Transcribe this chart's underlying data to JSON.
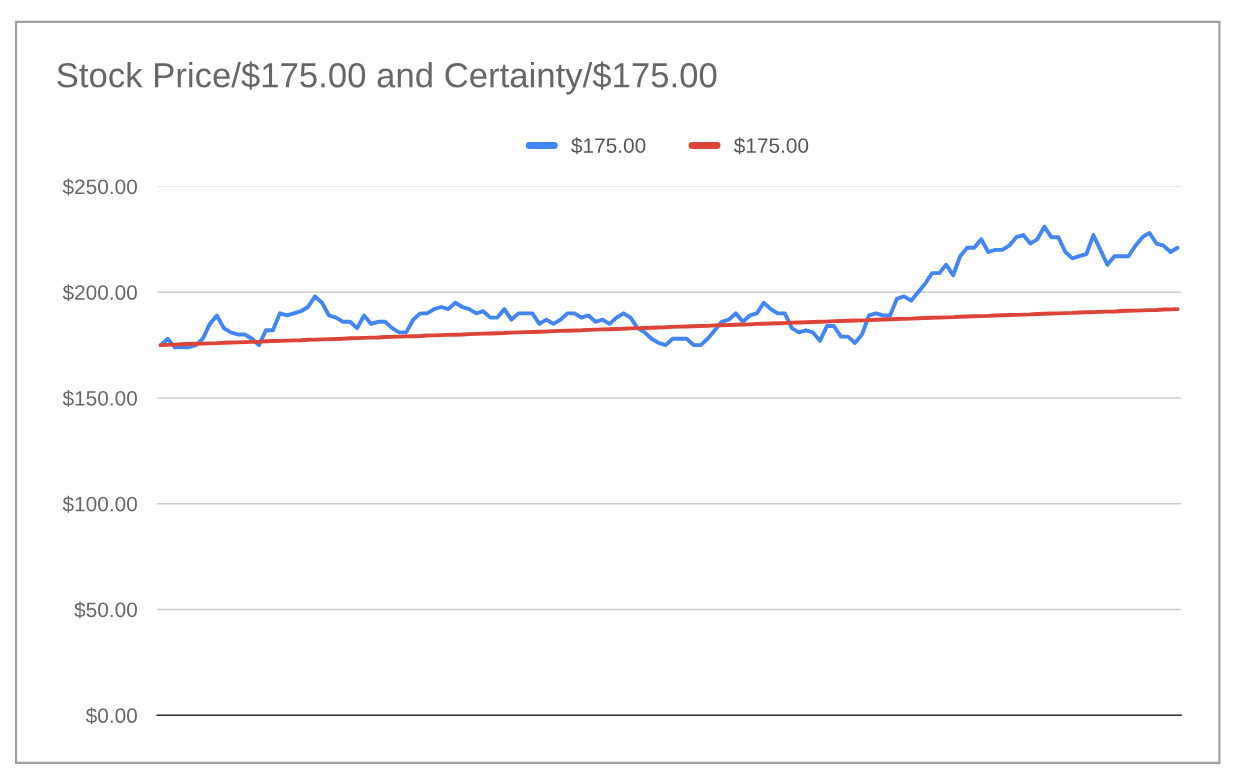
{
  "chart_data": {
    "type": "line",
    "title": "Stock Price/$175.00 and Certainty/$175.00",
    "categories": [
      null,
      null,
      null,
      null,
      null,
      null,
      null,
      null,
      null,
      null,
      null,
      null,
      null,
      null,
      null,
      null,
      null,
      null,
      null,
      null,
      null,
      null,
      null,
      null,
      null,
      null,
      null,
      null,
      null,
      null,
      null,
      null,
      null,
      null,
      null,
      null,
      null,
      null,
      null,
      null,
      null,
      null,
      null,
      null,
      null,
      null,
      null,
      null,
      null,
      null,
      null,
      null,
      null,
      null,
      null,
      null,
      null,
      null,
      null,
      null,
      null,
      null,
      null,
      null,
      null,
      null,
      null,
      null,
      null,
      null,
      null,
      null,
      null,
      null,
      null,
      null,
      null,
      null,
      null,
      null,
      null,
      null,
      null,
      null,
      null,
      null,
      null,
      null,
      null,
      null,
      null,
      null,
      null,
      null,
      null,
      null,
      null,
      null,
      null,
      null,
      null,
      null,
      null,
      null,
      null,
      null,
      null,
      null,
      null,
      null,
      null,
      null,
      null,
      null,
      null,
      null,
      null,
      null,
      null,
      null,
      null,
      null,
      null,
      null,
      null,
      null,
      null,
      null,
      null,
      null,
      null,
      null,
      null,
      null,
      null,
      null,
      null,
      null,
      null,
      null,
      null,
      null,
      null,
      null,
      null,
      null
    ],
    "series": [
      {
        "name": "$175.00",
        "color": "#4285f4",
        "values": [
          175,
          178,
          174,
          174,
          174,
          175,
          178,
          185,
          189,
          183,
          181,
          180,
          180,
          178,
          175,
          182,
          182,
          190,
          189,
          190,
          191,
          193,
          198,
          195,
          189,
          188,
          186,
          186,
          183,
          189,
          185,
          186,
          186,
          183,
          181,
          181,
          187,
          190,
          190,
          192,
          193,
          192,
          195,
          193,
          192,
          190,
          191,
          188,
          188,
          192,
          187,
          190,
          190,
          190,
          185,
          187,
          185,
          187,
          190,
          190,
          188,
          189,
          186,
          187,
          185,
          188,
          190,
          188,
          183,
          181,
          178,
          176,
          175,
          178,
          178,
          178,
          175,
          175,
          178,
          182,
          186,
          187,
          190,
          186,
          189,
          190,
          195,
          192,
          190,
          190,
          183,
          181,
          182,
          181,
          177,
          184,
          184,
          179,
          179,
          176,
          180,
          189,
          190,
          189,
          189,
          197,
          198,
          196,
          200,
          204,
          209,
          209,
          213,
          208,
          217,
          221,
          221,
          225,
          219,
          220,
          220,
          222,
          226,
          227,
          223,
          225,
          231,
          226,
          226,
          219,
          216,
          217,
          218,
          227,
          220,
          213,
          217,
          217,
          217,
          222,
          226,
          228,
          223,
          222,
          219,
          221
        ]
      },
      {
        "name": "$175.00",
        "color": "#db4437",
        "values": [
          175.0,
          175.1,
          175.2,
          175.4,
          175.5,
          175.6,
          175.7,
          175.8,
          175.9,
          176.1,
          176.2,
          176.3,
          176.4,
          176.5,
          176.6,
          176.8,
          176.9,
          177.0,
          177.1,
          177.2,
          177.3,
          177.5,
          177.6,
          177.7,
          177.8,
          177.9,
          178.0,
          178.2,
          178.3,
          178.4,
          178.5,
          178.6,
          178.8,
          178.9,
          179.0,
          179.1,
          179.2,
          179.3,
          179.5,
          179.6,
          179.7,
          179.8,
          179.9,
          180.0,
          180.2,
          180.3,
          180.4,
          180.5,
          180.6,
          180.7,
          180.9,
          181.0,
          181.1,
          181.2,
          181.3,
          181.4,
          181.6,
          181.7,
          181.8,
          181.9,
          182.0,
          182.2,
          182.3,
          182.4,
          182.5,
          182.6,
          182.7,
          182.9,
          183.0,
          183.1,
          183.2,
          183.3,
          183.4,
          183.6,
          183.7,
          183.8,
          183.9,
          184.0,
          184.1,
          184.3,
          184.4,
          184.5,
          184.6,
          184.7,
          184.8,
          185.0,
          185.1,
          185.2,
          185.3,
          185.4,
          185.6,
          185.7,
          185.8,
          185.9,
          186.0,
          186.1,
          186.3,
          186.4,
          186.5,
          186.6,
          186.7,
          186.8,
          187.0,
          187.1,
          187.2,
          187.3,
          187.4,
          187.5,
          187.7,
          187.8,
          187.9,
          188.0,
          188.1,
          188.2,
          188.4,
          188.5,
          188.6,
          188.7,
          188.8,
          189.0,
          189.1,
          189.2,
          189.3,
          189.4,
          189.5,
          189.7,
          189.8,
          189.9,
          190.0,
          190.1,
          190.2,
          190.4,
          190.5,
          190.6,
          190.7,
          190.8,
          190.9,
          191.1,
          191.2,
          191.3,
          191.4,
          191.5,
          191.6,
          191.8,
          191.9,
          192.0
        ]
      }
    ],
    "ylim": [
      0,
      250
    ],
    "yticks": [
      {
        "value": 0,
        "label": "$0.00"
      },
      {
        "value": 50,
        "label": "$50.00"
      },
      {
        "value": 100,
        "label": "$100.00"
      },
      {
        "value": 150,
        "label": "$150.00"
      },
      {
        "value": 200,
        "label": "$200.00"
      },
      {
        "value": 250,
        "label": "$250.00"
      }
    ],
    "grid": "y",
    "legend": "top",
    "marker": "none",
    "line_style": "solid"
  }
}
